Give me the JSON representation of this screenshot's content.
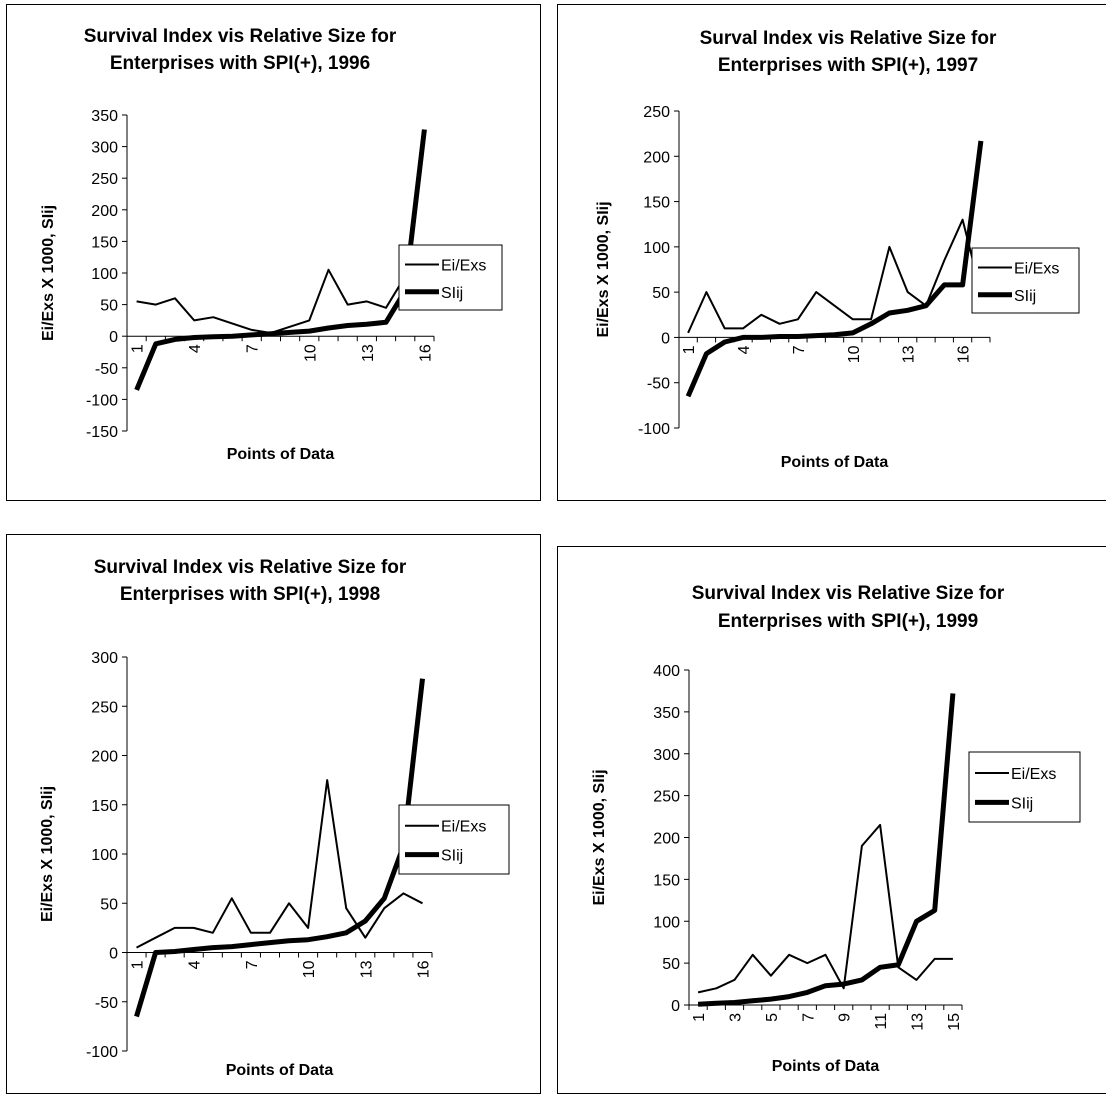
{
  "chart_data": [
    {
      "type": "line",
      "title": [
        "Survival Index vis Relative Size for",
        "Enterprises with SPI(+), 1996"
      ],
      "xlabel": "Points of Data",
      "ylabel": "Ei/Exs X 1000, SIij",
      "ylim": [
        -150,
        350
      ],
      "yticks": [
        -150,
        -100,
        -50,
        0,
        50,
        100,
        150,
        200,
        250,
        300,
        350
      ],
      "x": [
        1,
        2,
        3,
        4,
        5,
        6,
        7,
        8,
        9,
        10,
        11,
        12,
        13,
        14,
        15,
        16
      ],
      "xticks": [
        1,
        4,
        7,
        10,
        13,
        16
      ],
      "x_tick_rotation": "vertical",
      "legend": "right",
      "series": [
        {
          "name": "Ei/Exs",
          "weight": "thin",
          "values": [
            55,
            50,
            60,
            25,
            30,
            20,
            10,
            5,
            15,
            25,
            105,
            50,
            55,
            45,
            95,
            50
          ]
        },
        {
          "name": "SIij",
          "weight": "thick",
          "values": [
            -85,
            -12,
            -5,
            -2,
            -1,
            0,
            2,
            4,
            6,
            8,
            13,
            17,
            19,
            22,
            72,
            327
          ]
        }
      ]
    },
    {
      "type": "line",
      "title": [
        "Surval Index vis Relative Size for",
        "Enterprises with SPI(+), 1997"
      ],
      "xlabel": "Points of Data",
      "ylabel": "Ei/Exs X 1000, SIij",
      "ylim": [
        -100,
        250
      ],
      "yticks": [
        -100,
        -50,
        0,
        50,
        100,
        150,
        200,
        250
      ],
      "x": [
        1,
        2,
        3,
        4,
        5,
        6,
        7,
        8,
        9,
        10,
        11,
        12,
        13,
        14,
        15,
        16,
        17
      ],
      "xticks": [
        1,
        4,
        7,
        10,
        13,
        16
      ],
      "x_tick_rotation": "vertical",
      "legend": "right",
      "series": [
        {
          "name": "Ei/Exs",
          "weight": "thin",
          "values": [
            5,
            50,
            10,
            10,
            25,
            15,
            20,
            50,
            35,
            20,
            20,
            100,
            50,
            35,
            85,
            130,
            50
          ]
        },
        {
          "name": "SIij",
          "weight": "thick",
          "values": [
            -65,
            -18,
            -5,
            0,
            0,
            1,
            1,
            2,
            3,
            5,
            15,
            27,
            30,
            35,
            58,
            58,
            217
          ]
        }
      ]
    },
    {
      "type": "line",
      "title": [
        "Survival Index vis Relative Size for",
        "Enterprises with SPI(+), 1998"
      ],
      "xlabel": "Points of Data",
      "ylabel": "Ei/Exs X 1000, SIij",
      "ylim": [
        -100,
        300
      ],
      "yticks": [
        -100,
        -50,
        0,
        50,
        100,
        150,
        200,
        250,
        300
      ],
      "x": [
        1,
        2,
        3,
        4,
        5,
        6,
        7,
        8,
        9,
        10,
        11,
        12,
        13,
        14,
        15,
        16
      ],
      "xticks": [
        1,
        4,
        7,
        10,
        13,
        16
      ],
      "x_tick_rotation": "vertical",
      "legend": "right",
      "series": [
        {
          "name": "Ei/Exs",
          "weight": "thin",
          "values": [
            5,
            15,
            25,
            25,
            20,
            55,
            20,
            20,
            50,
            25,
            175,
            45,
            15,
            45,
            60,
            50
          ]
        },
        {
          "name": "SIij",
          "weight": "thick",
          "values": [
            -65,
            0,
            1,
            3,
            5,
            6,
            8,
            10,
            12,
            13,
            16,
            20,
            32,
            55,
            108,
            278
          ]
        }
      ]
    },
    {
      "type": "line",
      "title": [
        "Survival Index vis Relative Size for",
        "Enterprises with SPI(+), 1999"
      ],
      "xlabel": "Points of Data",
      "ylabel": "Ei/Exs X 1000, SIij",
      "ylim": [
        0,
        400
      ],
      "yticks": [
        0,
        50,
        100,
        150,
        200,
        250,
        300,
        350,
        400
      ],
      "x": [
        1,
        2,
        3,
        4,
        5,
        6,
        7,
        8,
        9,
        10,
        11,
        12,
        13,
        14,
        15
      ],
      "xticks": [
        1,
        3,
        5,
        7,
        9,
        11,
        13,
        15
      ],
      "x_tick_rotation": "vertical",
      "legend": "right",
      "series": [
        {
          "name": "Ei/Exs",
          "weight": "thin",
          "values": [
            15,
            20,
            30,
            60,
            35,
            60,
            50,
            60,
            20,
            190,
            215,
            45,
            30,
            55,
            55
          ]
        },
        {
          "name": "SIij",
          "weight": "thick",
          "values": [
            1,
            2,
            3,
            5,
            7,
            10,
            15,
            23,
            25,
            30,
            45,
            48,
            100,
            113,
            372
          ]
        }
      ]
    }
  ]
}
